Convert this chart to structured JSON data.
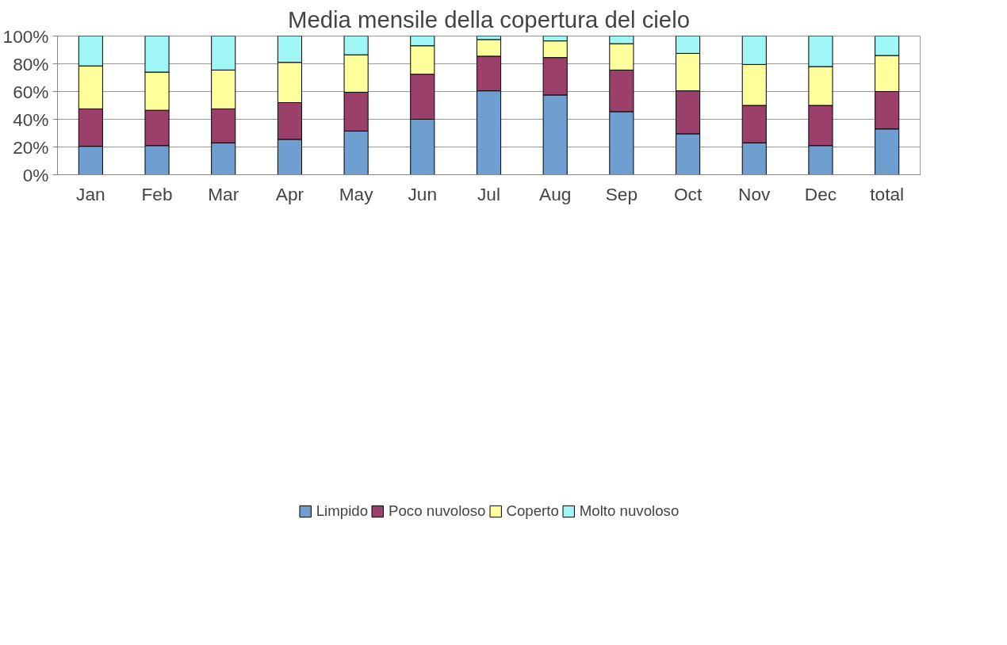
{
  "chart_data": {
    "type": "bar",
    "title": "Media mensile della copertura del cielo",
    "stacked": true,
    "categories": [
      "Jan",
      "Feb",
      "Mar",
      "Apr",
      "May",
      "Jun",
      "Jul",
      "Aug",
      "Sep",
      "Oct",
      "Nov",
      "Dec",
      "total"
    ],
    "series": [
      {
        "name": "Limpido",
        "color": "#6f9fd0",
        "values": [
          20.5,
          21,
          23,
          25.5,
          31.5,
          40,
          60.5,
          57.5,
          45.5,
          29.5,
          23,
          21,
          33
        ]
      },
      {
        "name": "Poco nuvoloso",
        "color": "#9b3f6b",
        "values": [
          27,
          25.5,
          24.5,
          26.5,
          28,
          32.5,
          25,
          27,
          30,
          31,
          27,
          29,
          27
        ]
      },
      {
        "name": "Coperto",
        "color": "#ffff9c",
        "values": [
          31,
          27.5,
          28,
          29,
          27,
          20.5,
          12,
          12,
          19,
          27,
          29.5,
          28,
          26
        ]
      },
      {
        "name": "Molto nuvoloso",
        "color": "#a0f5f5",
        "values": [
          21.5,
          26,
          24.5,
          19,
          13.5,
          7,
          2.5,
          3.5,
          5.5,
          12.5,
          20.5,
          22,
          14
        ]
      }
    ],
    "ylim": [
      0,
      100
    ],
    "yticks": [
      {
        "value": 0,
        "label": "0%"
      },
      {
        "value": 20,
        "label": "20%"
      },
      {
        "value": 40,
        "label": "40%"
      },
      {
        "value": 60,
        "label": "60%"
      },
      {
        "value": 80,
        "label": "80%"
      },
      {
        "value": 100,
        "label": "100%"
      }
    ],
    "grid": "y",
    "legend": "bottom"
  }
}
